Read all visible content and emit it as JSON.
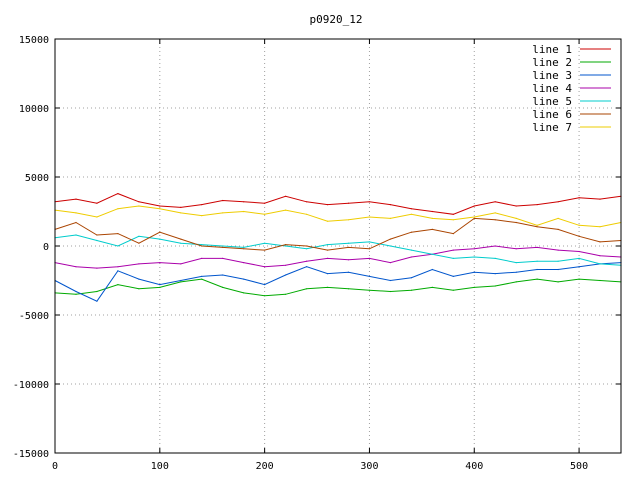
{
  "chart_data": {
    "type": "line",
    "title": "p0920_12",
    "xlabel": "",
    "ylabel": "",
    "xlim": [
      0,
      540
    ],
    "ylim": [
      -15000,
      15000
    ],
    "grid": true,
    "legend_position": "top-right",
    "x_ticks": [
      "0",
      "100",
      "200",
      "300",
      "400",
      "500"
    ],
    "y_ticks": [
      "15000",
      "10000",
      "5000",
      "0",
      "-5000",
      "-10000",
      "-15000"
    ],
    "x": [
      0,
      20,
      40,
      60,
      80,
      100,
      120,
      140,
      160,
      180,
      200,
      220,
      240,
      260,
      280,
      300,
      320,
      340,
      360,
      380,
      400,
      420,
      440,
      460,
      480,
      500,
      520,
      540
    ],
    "series": [
      {
        "name": "line 1",
        "color": "#cc0000",
        "values": [
          3200,
          3400,
          3100,
          3800,
          3200,
          2900,
          2800,
          3000,
          3300,
          3200,
          3100,
          3600,
          3200,
          3000,
          3100,
          3200,
          3000,
          2700,
          2500,
          2300,
          2900,
          3200,
          2900,
          3000,
          3200,
          3500,
          3400,
          3600
        ]
      },
      {
        "name": "line 2",
        "color": "#00aa00",
        "values": [
          -3400,
          -3500,
          -3300,
          -2800,
          -3100,
          -3000,
          -2600,
          -2400,
          -3000,
          -3400,
          -3600,
          -3500,
          -3100,
          -3000,
          -3100,
          -3200,
          -3300,
          -3200,
          -3000,
          -3200,
          -3000,
          -2900,
          -2600,
          -2400,
          -2600,
          -2400,
          -2500,
          -2600
        ]
      },
      {
        "name": "line 3",
        "color": "#0055cc",
        "values": [
          -2500,
          -3300,
          -4000,
          -1800,
          -2400,
          -2800,
          -2500,
          -2200,
          -2100,
          -2400,
          -2800,
          -2100,
          -1500,
          -2000,
          -1900,
          -2200,
          -2500,
          -2300,
          -1700,
          -2200,
          -1900,
          -2000,
          -1900,
          -1700,
          -1700,
          -1500,
          -1300,
          -1200
        ]
      },
      {
        "name": "line 4",
        "color": "#aa00aa",
        "values": [
          -1200,
          -1500,
          -1600,
          -1500,
          -1300,
          -1200,
          -1300,
          -900,
          -900,
          -1200,
          -1500,
          -1400,
          -1100,
          -900,
          -1000,
          -900,
          -1200,
          -800,
          -600,
          -300,
          -200,
          0,
          -200,
          -100,
          -300,
          -400,
          -700,
          -800
        ]
      },
      {
        "name": "line 5",
        "color": "#00cccc",
        "values": [
          600,
          800,
          400,
          0,
          700,
          500,
          200,
          100,
          0,
          -100,
          200,
          0,
          -200,
          100,
          200,
          300,
          0,
          -300,
          -600,
          -900,
          -800,
          -900,
          -1200,
          -1100,
          -1100,
          -900,
          -1300,
          -1400
        ]
      },
      {
        "name": "line 6",
        "color": "#aa4400",
        "values": [
          1200,
          1700,
          800,
          900,
          200,
          1000,
          500,
          0,
          -100,
          -200,
          -300,
          100,
          0,
          -300,
          -100,
          -200,
          500,
          1000,
          1200,
          900,
          2000,
          1900,
          1700,
          1400,
          1200,
          700,
          300,
          400
        ]
      },
      {
        "name": "line 7",
        "color": "#eecc00",
        "values": [
          2600,
          2400,
          2100,
          2700,
          2900,
          2700,
          2400,
          2200,
          2400,
          2500,
          2300,
          2600,
          2300,
          1800,
          1900,
          2100,
          2000,
          2300,
          2000,
          1900,
          2100,
          2400,
          2000,
          1500,
          2000,
          1500,
          1400,
          1700
        ]
      }
    ]
  }
}
